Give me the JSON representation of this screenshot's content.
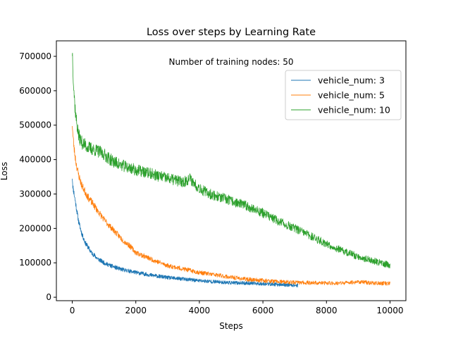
{
  "chart_data": {
    "type": "line",
    "title": "Loss over steps by Learning Rate",
    "xlabel": "Steps",
    "ylabel": "Loss",
    "annotation": "Number of training nodes: 50",
    "annotation_color": "#0000cc",
    "xlim": [
      -500,
      10500
    ],
    "ylim": [
      -10000,
      745000
    ],
    "xticks": [
      0,
      2000,
      4000,
      6000,
      8000,
      10000
    ],
    "yticks": [
      0,
      100000,
      200000,
      300000,
      400000,
      500000,
      600000,
      700000
    ],
    "grid": false,
    "legend_position": "top-right",
    "series": [
      {
        "name": "vehicle_num: 3",
        "color": "#1f77b4",
        "points": [
          [
            0,
            350000
          ],
          [
            20,
            320000
          ],
          [
            60,
            300000
          ],
          [
            120,
            265000
          ],
          [
            200,
            220000
          ],
          [
            300,
            185000
          ],
          [
            400,
            160000
          ],
          [
            500,
            145000
          ],
          [
            600,
            130000
          ],
          [
            800,
            112000
          ],
          [
            1000,
            100000
          ],
          [
            1200,
            92000
          ],
          [
            1500,
            82000
          ],
          [
            2000,
            72000
          ],
          [
            2500,
            64000
          ],
          [
            3000,
            57000
          ],
          [
            3500,
            53000
          ],
          [
            4000,
            48000
          ],
          [
            4500,
            45000
          ],
          [
            5000,
            42000
          ],
          [
            5500,
            41000
          ],
          [
            6000,
            39000
          ],
          [
            6500,
            37000
          ],
          [
            7000,
            35000
          ],
          [
            7100,
            34000
          ]
        ],
        "noise": 4500,
        "seed": 11
      },
      {
        "name": "vehicle_num: 5",
        "color": "#ff7f0e",
        "points": [
          [
            0,
            505000
          ],
          [
            20,
            470000
          ],
          [
            60,
            430000
          ],
          [
            120,
            390000
          ],
          [
            200,
            355000
          ],
          [
            300,
            325000
          ],
          [
            500,
            290000
          ],
          [
            700,
            265000
          ],
          [
            1000,
            225000
          ],
          [
            1300,
            195000
          ],
          [
            1600,
            165000
          ],
          [
            1800,
            150000
          ],
          [
            2000,
            130000
          ],
          [
            2500,
            110000
          ],
          [
            3000,
            92000
          ],
          [
            3500,
            82000
          ],
          [
            4000,
            72000
          ],
          [
            4500,
            65000
          ],
          [
            5000,
            58000
          ],
          [
            5500,
            52000
          ],
          [
            6000,
            49000
          ],
          [
            6500,
            45000
          ],
          [
            7000,
            43000
          ],
          [
            7500,
            42000
          ],
          [
            8000,
            41000
          ],
          [
            8500,
            41000
          ],
          [
            9000,
            45000
          ],
          [
            9500,
            41000
          ],
          [
            10000,
            40000
          ]
        ],
        "noise": 5000,
        "seed": 23
      },
      {
        "name": "vehicle_num: 10",
        "color": "#2ca02c",
        "points": [
          [
            0,
            715000
          ],
          [
            15,
            690000
          ],
          [
            40,
            620000
          ],
          [
            80,
            560000
          ],
          [
            120,
            520000
          ],
          [
            200,
            470000
          ],
          [
            300,
            450000
          ],
          [
            500,
            435000
          ],
          [
            800,
            425000
          ],
          [
            1000,
            415000
          ],
          [
            1200,
            400000
          ],
          [
            1500,
            385000
          ],
          [
            2000,
            370000
          ],
          [
            2500,
            358000
          ],
          [
            3000,
            345000
          ],
          [
            3500,
            335000
          ],
          [
            3700,
            345000
          ],
          [
            3900,
            325000
          ],
          [
            4200,
            305000
          ],
          [
            4500,
            295000
          ],
          [
            5000,
            280000
          ],
          [
            5500,
            265000
          ],
          [
            6000,
            245000
          ],
          [
            6500,
            220000
          ],
          [
            7000,
            200000
          ],
          [
            7500,
            178000
          ],
          [
            8000,
            155000
          ],
          [
            8500,
            135000
          ],
          [
            9000,
            118000
          ],
          [
            9500,
            105000
          ],
          [
            10000,
            93000
          ]
        ],
        "noise": 7000,
        "seed": 37
      }
    ]
  }
}
